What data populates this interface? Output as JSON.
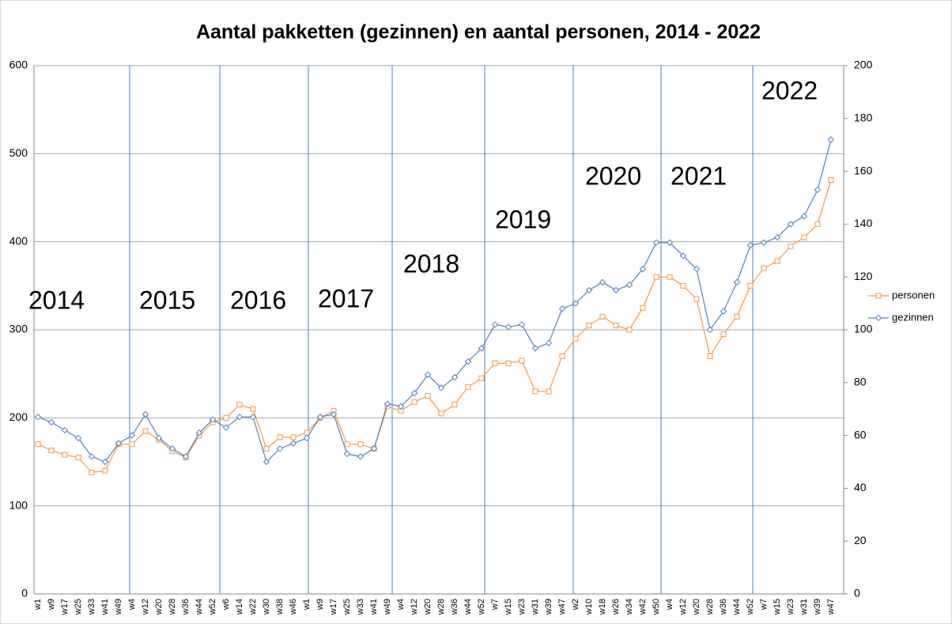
{
  "chart_data": {
    "type": "line",
    "title": "Aantal pakketten (gezinnen) en aantal personen, 2014 - 2022",
    "annotations": [
      "2014",
      "2015",
      "2016",
      "2017",
      "2018",
      "2019",
      "2020",
      "2021",
      "2022"
    ],
    "categories": [
      "w1",
      "w9",
      "w17",
      "w25",
      "w33",
      "w41",
      "w49",
      "w4",
      "w12",
      "w20",
      "w28",
      "w36",
      "w44",
      "w52",
      "w6",
      "w14",
      "w22",
      "w30",
      "w38",
      "w46",
      "w1",
      "w9",
      "w17",
      "w25",
      "w33",
      "w41",
      "w49",
      "w4",
      "w12",
      "w20",
      "w28",
      "w36",
      "w44",
      "w52",
      "w7",
      "w15",
      "w23",
      "w31",
      "w39",
      "w47",
      "w2",
      "w10",
      "w18",
      "w26",
      "w34",
      "w42",
      "w50",
      "w4",
      "w12",
      "w20",
      "w28",
      "w36",
      "w44",
      "w52",
      "w7",
      "w15",
      "w23",
      "w31",
      "w39",
      "w47"
    ],
    "series": [
      {
        "name": "personen",
        "color": "#f79646",
        "marker": "square",
        "values": [
          170,
          163,
          158,
          155,
          138,
          140,
          170,
          170,
          185,
          175,
          162,
          155,
          180,
          195,
          200,
          215,
          210,
          165,
          178,
          178,
          183,
          200,
          208,
          170,
          170,
          165,
          213,
          208,
          218,
          225,
          205,
          215,
          235,
          245,
          262,
          262,
          265,
          230,
          230,
          270,
          290,
          305,
          315,
          305,
          300,
          325,
          360,
          360,
          350,
          335,
          270,
          295,
          315,
          350,
          370,
          378,
          395,
          405,
          420,
          470
        ]
      },
      {
        "name": "gezinnen",
        "color": "#4f81bd",
        "marker": "diamond",
        "axis": "y2",
        "values": [
          67,
          65,
          62,
          59,
          52,
          50,
          57,
          60,
          68,
          59,
          55,
          52,
          61,
          66,
          63,
          67,
          67,
          50,
          55,
          57,
          59,
          67,
          68,
          53,
          52,
          55,
          72,
          71,
          76,
          83,
          78,
          82,
          88,
          93,
          102,
          101,
          102,
          93,
          95,
          108,
          110,
          115,
          118,
          115,
          117,
          123,
          133,
          133,
          128,
          123,
          100,
          107,
          118,
          132,
          133,
          135,
          140,
          143,
          153,
          172
        ]
      }
    ],
    "ylim": [
      0,
      600
    ],
    "yticks": [
      0,
      100,
      200,
      300,
      400,
      500,
      600
    ],
    "y2lim": [
      0,
      200
    ],
    "y2ticks": [
      0,
      20,
      40,
      60,
      80,
      100,
      120,
      140,
      160,
      180,
      200
    ],
    "grid": true,
    "legend": "right"
  }
}
